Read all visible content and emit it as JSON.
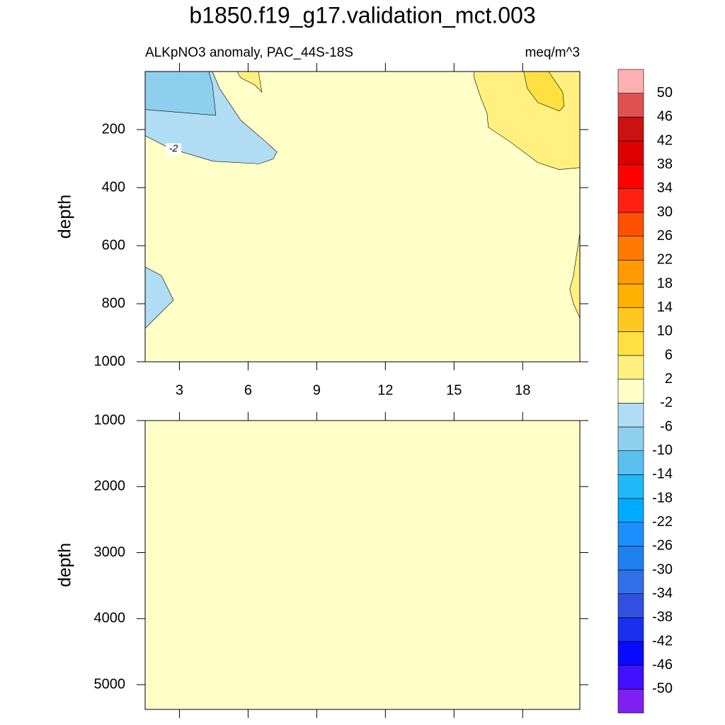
{
  "chart_data": {
    "type": "contour",
    "title": "b1850.f19_g17.validation_mct.003",
    "subtitle_left": "ALKpNO3 anomaly, PAC_44S-18S",
    "subtitle_right": "meq/m^3",
    "xlim": [
      1.5,
      20.5
    ],
    "xticks": [
      3,
      6,
      9,
      12,
      15,
      18
    ],
    "colorbar": {
      "levels": [
        -50,
        -46,
        -42,
        -38,
        -34,
        -30,
        -26,
        -22,
        -18,
        -14,
        -10,
        -6,
        -2,
        2,
        6,
        10,
        14,
        18,
        22,
        26,
        30,
        34,
        38,
        42,
        46,
        50
      ],
      "colors": [
        "#8020f0",
        "#4010ff",
        "#0a0aff",
        "#1a30f0",
        "#3050e0",
        "#3070e8",
        "#2080f0",
        "#1a90ff",
        "#00aaff",
        "#20b8f8",
        "#5ac0ee",
        "#8ecfee",
        "#b0dcf4",
        "#ffffc8",
        "#fff080",
        "#ffe040",
        "#ffc820",
        "#ffb000",
        "#ff9a00",
        "#ff7a00",
        "#ff5000",
        "#ff2010",
        "#ff0000",
        "#dd0000",
        "#cc1111",
        "#e05050",
        "#ffb0b0"
      ]
    },
    "panels": [
      {
        "ylabel": "depth",
        "ylim": [
          1000,
          0
        ],
        "yticks": [
          200,
          400,
          600,
          800,
          1000
        ],
        "xtick_labels": true,
        "background": {
          "min": -2,
          "max": 2
        },
        "regions": [
          {
            "min": -6,
            "max": -2,
            "x": [
              1.5,
              4.44,
              4.75,
              5.68,
              6.76,
              7.26,
              7.1,
              6.48,
              4.47,
              2.58,
              1.5
            ],
            "y": [
              0,
              0,
              58,
              168,
              241,
              277,
              301,
              318,
              309,
              265,
              221
            ]
          },
          {
            "min": -10,
            "max": -6,
            "x": [
              1.5,
              4.28,
              4.44,
              4.59,
              1.5
            ],
            "y": [
              0,
              0,
              46,
              151,
              131
            ]
          },
          {
            "min": -6,
            "max": -2,
            "x": [
              1.5,
              2.21,
              2.74,
              2.12,
              1.5
            ],
            "y": [
              673,
              703,
              788,
              836,
              885
            ]
          },
          {
            "min": 2,
            "max": 6,
            "x": [
              15.88,
              20.5,
              20.5,
              19.6,
              18.67,
              17.43,
              16.5,
              16.44,
              16.19,
              15.88
            ],
            "y": [
              0,
              0,
              331,
              338,
              314,
              241,
              192,
              143,
              95,
              22
            ]
          },
          {
            "min": 6,
            "max": 10,
            "x": [
              18.05,
              19.13,
              19.75,
              19.81,
              19.6,
              18.67,
              18.2
            ],
            "y": [
              0,
              0,
              71,
              119,
              136,
              107,
              58
            ]
          },
          {
            "min": 2,
            "max": 6,
            "x": [
              5.52,
              6.45,
              6.6,
              6.29,
              5.68
            ],
            "y": [
              0,
              0,
              71,
              46,
              22
            ]
          },
          {
            "min": 2,
            "max": 6,
            "x": [
              20.5,
              20.22,
              20.06,
              20.22,
              20.5
            ],
            "y": [
              557,
              703,
              751,
              800,
              849
            ]
          }
        ],
        "contour_labels": [
          {
            "text": "-2",
            "x": 2.74,
            "y": 267
          }
        ]
      },
      {
        "ylabel": "depth",
        "ylim": [
          5375,
          1000
        ],
        "yticks": [
          1000,
          2000,
          3000,
          4000,
          5000
        ],
        "xtick_labels": false,
        "background": {
          "min": -2,
          "max": 2
        },
        "regions": [],
        "contour_labels": []
      }
    ]
  }
}
